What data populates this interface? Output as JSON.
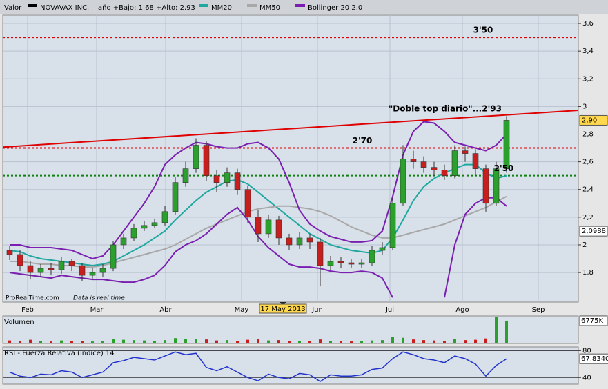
{
  "chart_data": [
    {
      "type": "candlestick",
      "title": "Valor",
      "name": "NOVAVAX INC.",
      "subtitle": "año +Bajo: 1,68 +Alto: 2,93",
      "source": "ProRealTime.com",
      "note": "Data is real time",
      "x": [
        2,
        5,
        8,
        11,
        14,
        17,
        20,
        23,
        26,
        29,
        32,
        35,
        38,
        41,
        44,
        47,
        50,
        53,
        56,
        59,
        62,
        65,
        68,
        71,
        74,
        77,
        80,
        83,
        86,
        89,
        92,
        95,
        98,
        101,
        104,
        107,
        110,
        113,
        116,
        119,
        122,
        125,
        128,
        131,
        134,
        137,
        140,
        143,
        146
      ],
      "open": [
        1.96,
        1.93,
        1.85,
        1.8,
        1.83,
        1.82,
        1.88,
        1.85,
        1.78,
        1.8,
        1.83,
        2.0,
        2.05,
        2.12,
        2.14,
        2.16,
        2.24,
        2.45,
        2.55,
        2.72,
        2.5,
        2.45,
        2.52,
        2.4,
        2.2,
        2.08,
        2.18,
        2.05,
        2.0,
        2.05,
        2.02,
        1.85,
        1.88,
        1.87,
        1.86,
        1.87,
        1.96,
        1.98,
        2.3,
        2.62,
        2.6,
        2.56,
        2.54,
        2.5,
        2.68,
        2.66,
        2.55,
        2.3,
        2.55
      ],
      "high": [
        1.99,
        1.96,
        1.88,
        1.86,
        1.87,
        1.91,
        1.9,
        1.87,
        1.83,
        1.86,
        2.03,
        2.08,
        2.15,
        2.17,
        2.19,
        2.28,
        2.49,
        2.6,
        2.77,
        2.75,
        2.54,
        2.56,
        2.55,
        2.43,
        2.25,
        2.22,
        2.21,
        2.08,
        2.09,
        2.08,
        2.05,
        1.92,
        1.91,
        1.9,
        1.9,
        1.99,
        2.02,
        2.34,
        2.72,
        2.68,
        2.64,
        2.6,
        2.58,
        2.72,
        2.71,
        2.69,
        2.58,
        2.6,
        2.93
      ],
      "low": [
        1.89,
        1.81,
        1.75,
        1.77,
        1.78,
        1.79,
        1.81,
        1.74,
        1.75,
        1.77,
        1.81,
        1.97,
        2.03,
        2.1,
        2.12,
        2.14,
        2.22,
        2.42,
        2.52,
        2.46,
        2.38,
        2.42,
        2.36,
        2.16,
        2.02,
        2.05,
        2.0,
        1.96,
        1.97,
        1.97,
        1.7,
        1.82,
        1.83,
        1.83,
        1.83,
        1.85,
        1.93,
        1.96,
        2.28,
        2.55,
        2.52,
        2.5,
        2.47,
        2.48,
        2.6,
        2.5,
        2.24,
        2.28,
        2.52
      ],
      "close": [
        1.93,
        1.85,
        1.8,
        1.83,
        1.82,
        1.88,
        1.85,
        1.78,
        1.8,
        1.83,
        2.0,
        2.05,
        2.12,
        2.14,
        2.16,
        2.24,
        2.45,
        2.55,
        2.72,
        2.5,
        2.45,
        2.52,
        2.4,
        2.2,
        2.08,
        2.18,
        2.05,
        2.0,
        2.05,
        2.02,
        1.85,
        1.88,
        1.87,
        1.86,
        1.87,
        1.96,
        1.98,
        2.3,
        2.62,
        2.6,
        2.56,
        2.54,
        2.5,
        2.68,
        2.66,
        2.55,
        2.3,
        2.55,
        2.9
      ],
      "up_color": "#2ca02c",
      "down_color": "#c81e1e",
      "series": [
        {
          "name": "MM20",
          "color": "#1fa8a0",
          "values": [
            1.96,
            1.95,
            1.92,
            1.9,
            1.89,
            1.88,
            1.87,
            1.86,
            1.85,
            1.86,
            1.88,
            1.92,
            1.96,
            2.0,
            2.05,
            2.1,
            2.18,
            2.25,
            2.32,
            2.38,
            2.42,
            2.46,
            2.47,
            2.44,
            2.38,
            2.32,
            2.26,
            2.2,
            2.14,
            2.08,
            2.04,
            2.0,
            1.98,
            1.96,
            1.95,
            1.94,
            1.96,
            2.05,
            2.18,
            2.32,
            2.42,
            2.48,
            2.52,
            2.55,
            2.58,
            2.58,
            2.52,
            2.48,
            2.5
          ]
        },
        {
          "name": "MM50",
          "color": "#a8a8a8",
          "values": [
            1.88,
            1.88,
            1.87,
            1.86,
            1.86,
            1.85,
            1.85,
            1.84,
            1.84,
            1.85,
            1.87,
            1.89,
            1.91,
            1.93,
            1.95,
            1.97,
            2.0,
            2.04,
            2.08,
            2.12,
            2.15,
            2.18,
            2.21,
            2.24,
            2.26,
            2.27,
            2.28,
            2.28,
            2.27,
            2.26,
            2.24,
            2.21,
            2.17,
            2.13,
            2.1,
            2.07,
            2.05,
            2.05,
            2.07,
            2.09,
            2.11,
            2.13,
            2.15,
            2.18,
            2.21,
            2.24,
            2.27,
            2.31,
            2.35
          ]
        },
        {
          "name": "Bollinger 20 2.0",
          "color": "#7a1fb0",
          "values": [
            2.0,
            2.0,
            1.98,
            1.98,
            1.98,
            1.97,
            1.96,
            1.93,
            1.9,
            1.92,
            2.0,
            2.1,
            2.2,
            2.3,
            2.42,
            2.58,
            2.65,
            2.7,
            2.74,
            2.73,
            2.71,
            2.7,
            2.7,
            2.73,
            2.74,
            2.7,
            2.62,
            2.45,
            2.25,
            2.15,
            2.1,
            2.06,
            2.04,
            2.02,
            2.02,
            2.03,
            2.1,
            2.35,
            2.65,
            2.82,
            2.89,
            2.88,
            2.82,
            2.74,
            2.72,
            2.7,
            2.68,
            2.72,
            2.8
          ],
          "lower": [
            1.8,
            1.79,
            1.78,
            1.77,
            1.76,
            1.78,
            1.77,
            1.76,
            1.75,
            1.75,
            1.74,
            1.73,
            1.73,
            1.75,
            1.78,
            1.85,
            1.95,
            2.0,
            2.03,
            2.08,
            2.15,
            2.22,
            2.27,
            2.18,
            2.06,
            1.98,
            1.92,
            1.86,
            1.84,
            1.84,
            1.83,
            1.81,
            1.8,
            1.8,
            1.81,
            1.8,
            1.76,
            1.62,
            null,
            null,
            null,
            null,
            1.62,
            2.0,
            2.22,
            2.3,
            2.34,
            2.34,
            2.28
          ]
        }
      ],
      "xlim": [
        0,
        166.8
      ],
      "xticks": [
        {
          "value": 7.2,
          "label": "Feb"
        },
        {
          "value": 27.2,
          "label": "Mar"
        },
        {
          "value": 47.2,
          "label": "Abr"
        },
        {
          "value": 69.2,
          "label": "May"
        },
        {
          "value": 91.2,
          "label": "Jun"
        },
        {
          "value": 112.2,
          "label": "Jul"
        },
        {
          "value": 133.2,
          "label": "Ago"
        },
        {
          "value": 155.2,
          "label": "Sep"
        }
      ],
      "ylim": [
        1.586,
        3.66
      ],
      "yticks": [
        {
          "value": 1.8,
          "label": "1,8"
        },
        2,
        {
          "value": 2.2,
          "label": "2,2"
        },
        {
          "value": 2.4,
          "label": "2,4"
        },
        {
          "value": 2.6,
          "label": "2,6"
        },
        {
          "value": 2.8,
          "label": "2,8"
        },
        3,
        {
          "value": 3.2,
          "label": "3,2"
        },
        {
          "value": 3.4,
          "label": "3,4"
        },
        {
          "value": 3.6,
          "label": "3,6"
        }
      ],
      "grid": true,
      "reference_lines": [
        {
          "value": 3.5,
          "label": "3'50",
          "color": "#e00000"
        },
        {
          "value": 2.7,
          "label": "2'70",
          "color": "#e00000"
        },
        {
          "value": 2.5,
          "label": "2'50",
          "color": "#108010"
        }
      ],
      "trend_line": {
        "x": [
          0,
          166.8
        ],
        "values": [
          2.707,
          2.972
        ],
        "color": "#e00000",
        "label": "\"Doble top diario\"...2'93"
      },
      "price_labels": [
        {
          "value": 2.9,
          "label": "2,90"
        },
        {
          "value": 2.0988,
          "label": "2,0988"
        }
      ],
      "date_marker": {
        "value": 81.2,
        "label": "17 May 2013"
      }
    },
    {
      "type": "bar",
      "title": "Volumen",
      "x": [
        2,
        5,
        8,
        11,
        14,
        17,
        20,
        23,
        26,
        29,
        32,
        35,
        38,
        41,
        44,
        47,
        50,
        53,
        56,
        59,
        62,
        65,
        68,
        71,
        74,
        77,
        80,
        83,
        86,
        89,
        92,
        95,
        98,
        101,
        104,
        107,
        110,
        113,
        116,
        119,
        122,
        125,
        128,
        131,
        134,
        137,
        140,
        143,
        146
      ],
      "values": [
        900,
        700,
        1100,
        800,
        600,
        900,
        700,
        800,
        600,
        700,
        1400,
        1100,
        1000,
        900,
        800,
        1000,
        1600,
        1300,
        1400,
        1200,
        900,
        1000,
        800,
        1100,
        1300,
        900,
        1000,
        800,
        700,
        800,
        1200,
        800,
        700,
        600,
        700,
        900,
        1000,
        1900,
        1700,
        1200,
        1000,
        900,
        800,
        1300,
        1000,
        1100,
        1500,
        7900,
        6775
      ],
      "value_labels": [
        null,
        null,
        null,
        null,
        null,
        null,
        null,
        null,
        null,
        null,
        null,
        null,
        null,
        null,
        null,
        null,
        null,
        null,
        null,
        null,
        null,
        null,
        null,
        null,
        null,
        null,
        null,
        null,
        null,
        null,
        null,
        null,
        null,
        null,
        null,
        null,
        null,
        null,
        null,
        null,
        null,
        null,
        null,
        null,
        null,
        null,
        null,
        null,
        "6775K"
      ],
      "xlim": [
        0,
        166.8
      ],
      "ylim": [
        0,
        8200
      ]
    },
    {
      "type": "line",
      "title": "RSI - Fuerza Relativa (índice) 14",
      "color": "#2233cc",
      "x": [
        2,
        5,
        8,
        11,
        14,
        17,
        20,
        23,
        26,
        29,
        32,
        35,
        38,
        41,
        44,
        47,
        50,
        53,
        56,
        59,
        62,
        65,
        68,
        71,
        74,
        77,
        80,
        83,
        86,
        89,
        92,
        95,
        98,
        101,
        104,
        107,
        110,
        113,
        116,
        119,
        122,
        125,
        128,
        131,
        134,
        137,
        140,
        143,
        146
      ],
      "values": [
        48,
        42,
        40,
        45,
        44,
        50,
        48,
        40,
        44,
        48,
        62,
        65,
        70,
        68,
        66,
        72,
        78,
        74,
        76,
        55,
        50,
        56,
        48,
        40,
        35,
        45,
        40,
        38,
        46,
        44,
        34,
        44,
        42,
        42,
        44,
        52,
        54,
        68,
        78,
        74,
        68,
        66,
        62,
        72,
        68,
        60,
        42,
        58,
        67.834
      ],
      "value_labels": [
        null,
        null,
        null,
        null,
        null,
        null,
        null,
        null,
        null,
        null,
        null,
        null,
        null,
        null,
        null,
        null,
        null,
        null,
        null,
        null,
        null,
        null,
        null,
        null,
        null,
        null,
        null,
        null,
        null,
        null,
        null,
        null,
        null,
        null,
        null,
        null,
        null,
        null,
        null,
        null,
        null,
        null,
        null,
        null,
        null,
        null,
        null,
        null,
        "67,8340"
      ],
      "xlim": [
        0,
        166.8
      ],
      "ylim": [
        30,
        85.5
      ],
      "yticks": [
        40,
        80
      ],
      "grid": true
    }
  ]
}
